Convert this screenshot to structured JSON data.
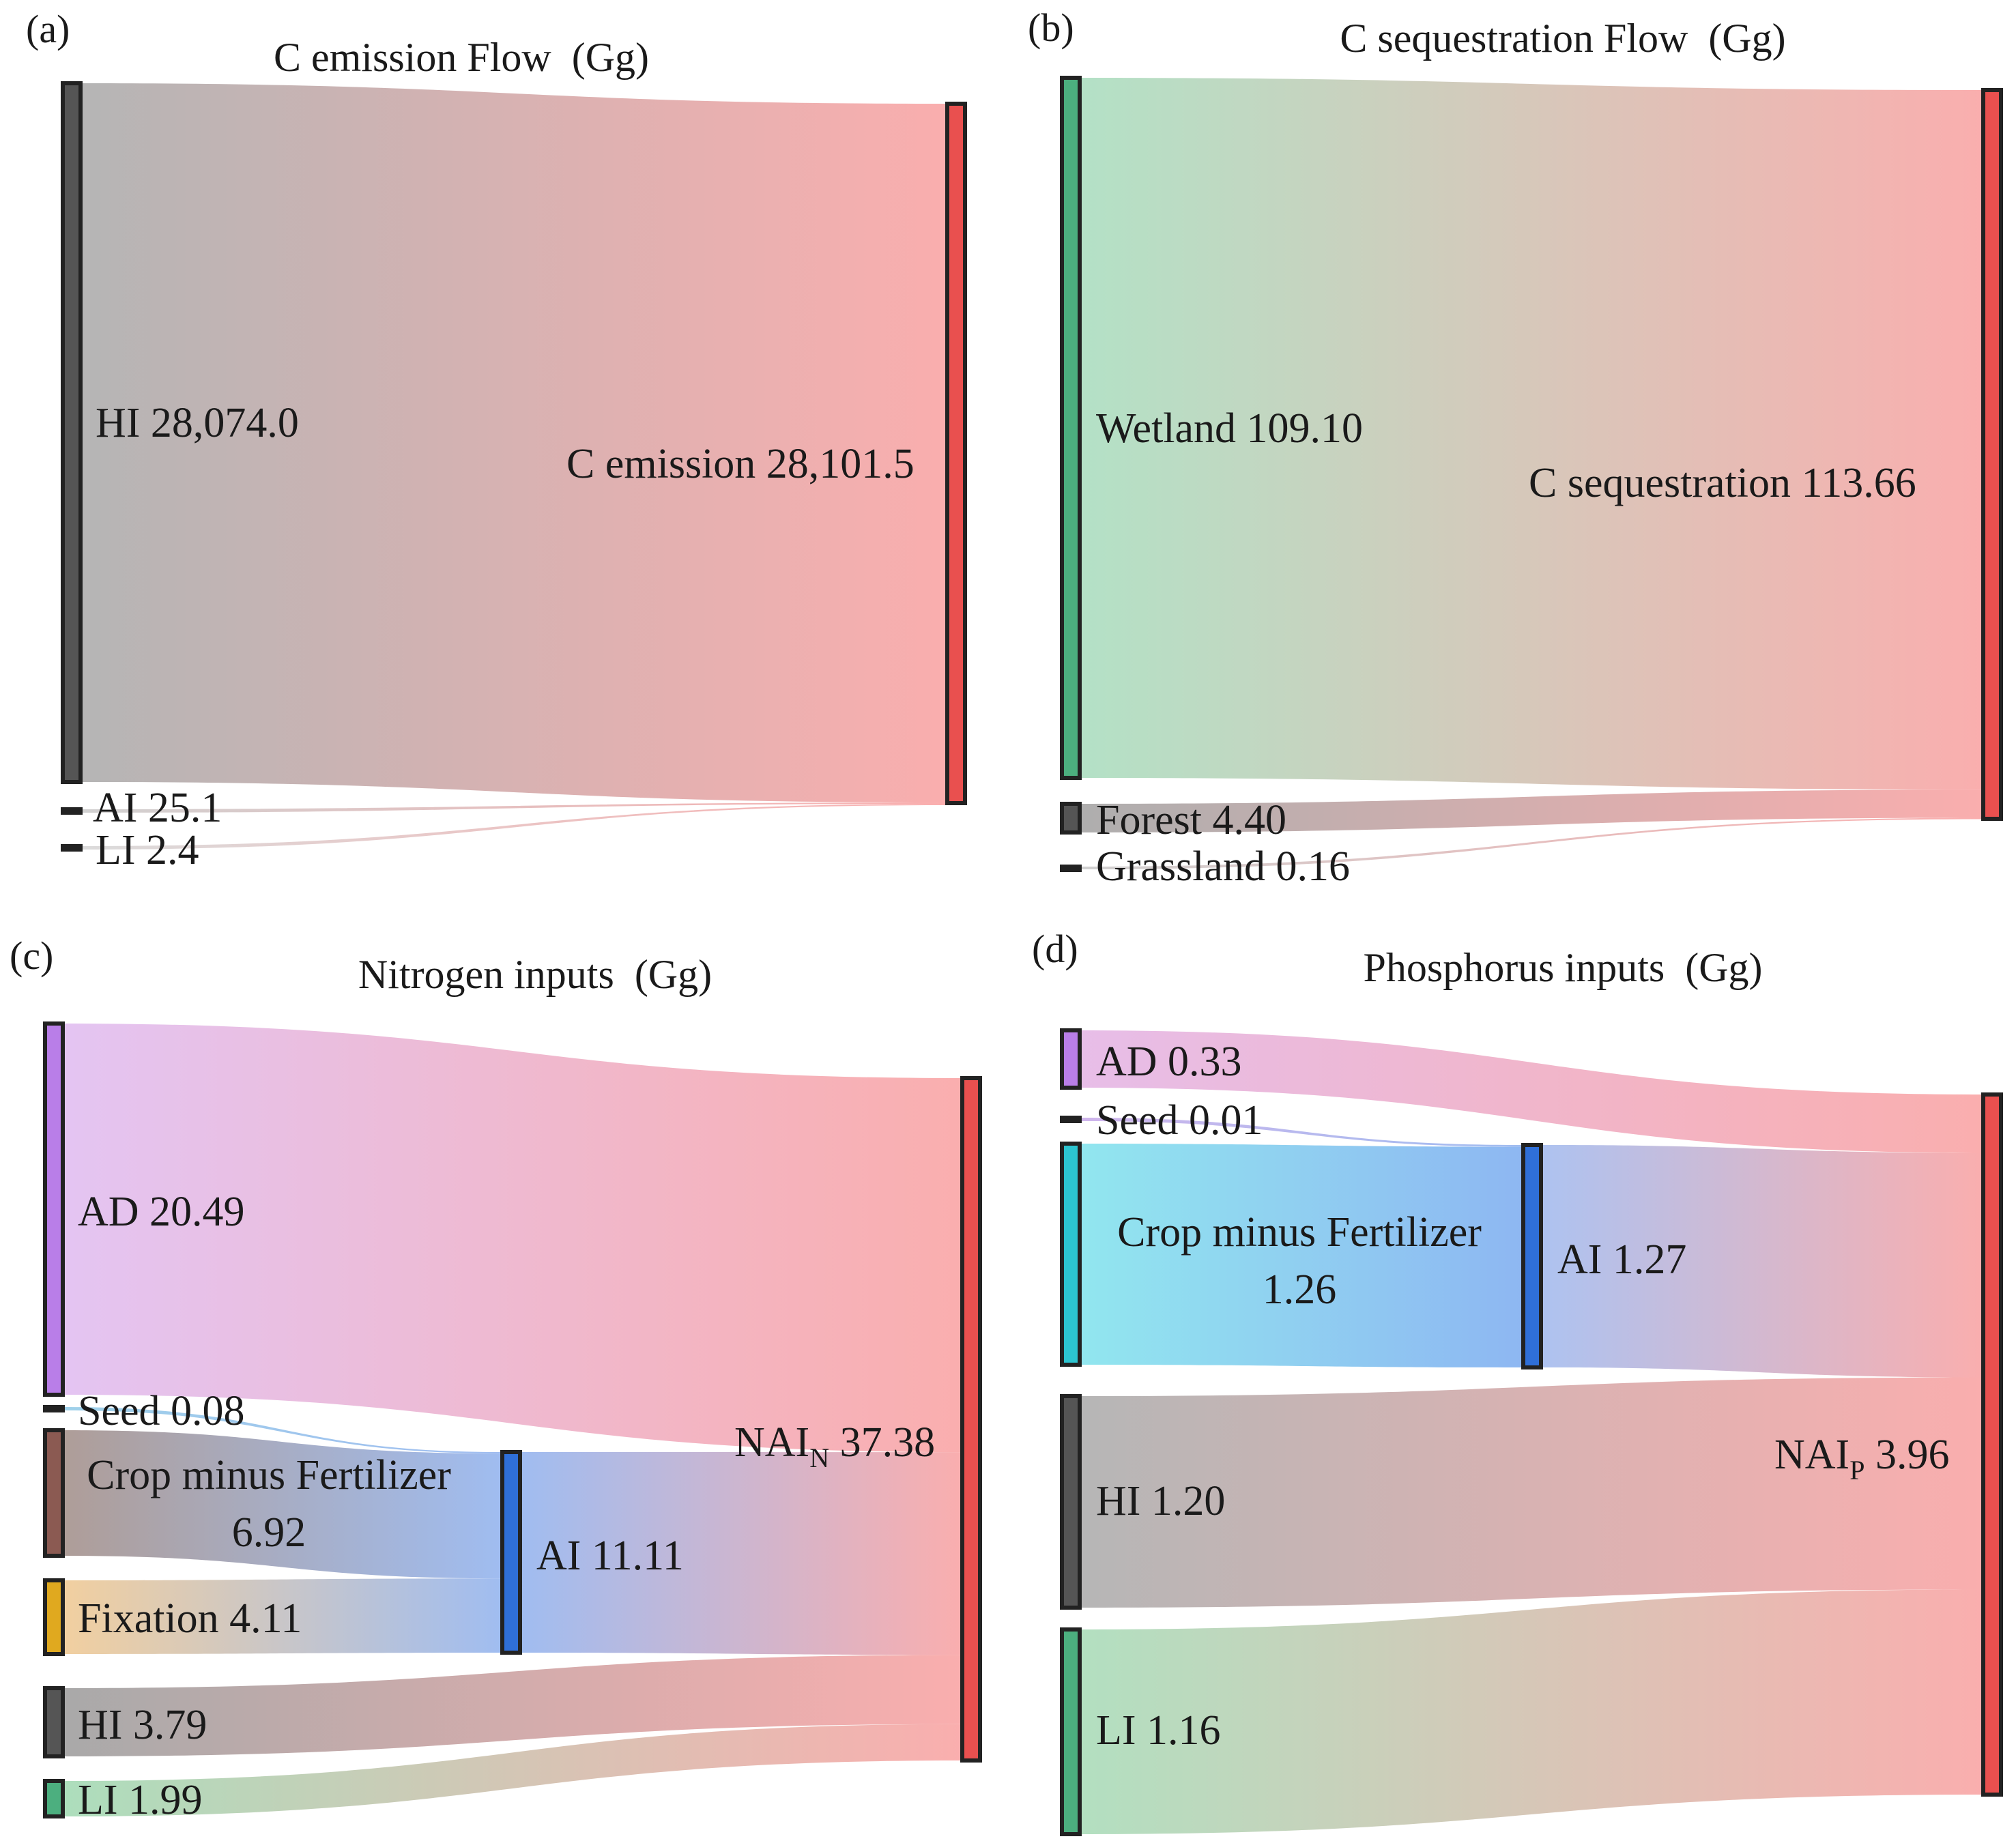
{
  "colors": {
    "gray": "#666666",
    "red": "#e9504f",
    "target_red": "#f9a3a3",
    "green": "#4caf7f",
    "purple": "#b97ee8",
    "brown": "#8b5a52",
    "gold": "#e0a91f",
    "blue": "#2f6fd8",
    "cyan": "#2cc4d0"
  },
  "chart_data": [
    {
      "type": "sankey",
      "panel": "(a)",
      "title": "C emission Flow  (Gg)",
      "nodes": [
        {
          "id": "HI",
          "label": "HI 28,074.0",
          "value": 28074.0,
          "color": "#555555"
        },
        {
          "id": "AI",
          "label": "AI 25.1",
          "value": 25.1,
          "color": "#555555"
        },
        {
          "id": "LI",
          "label": "LI 2.4",
          "value": 2.4,
          "color": "#555555"
        },
        {
          "id": "C",
          "label": "C emission 28,101.5",
          "value": 28101.5,
          "color": "#e9504f"
        }
      ],
      "links": [
        {
          "source": "HI",
          "target": "C",
          "value": 28074.0
        },
        {
          "source": "AI",
          "target": "C",
          "value": 25.1
        },
        {
          "source": "LI",
          "target": "C",
          "value": 2.4
        }
      ]
    },
    {
      "type": "sankey",
      "panel": "(b)",
      "title": "C sequestration Flow  (Gg)",
      "nodes": [
        {
          "id": "Wetland",
          "label": "Wetland 109.10",
          "value": 109.1,
          "color": "#4caf7f"
        },
        {
          "id": "Forest",
          "label": "Forest 4.40",
          "value": 4.4,
          "color": "#555555"
        },
        {
          "id": "Grassland",
          "label": "Grassland 0.16",
          "value": 0.16,
          "color": "#555555"
        },
        {
          "id": "CS",
          "label": "C sequestration 113.66",
          "value": 113.66,
          "color": "#e9504f"
        }
      ],
      "links": [
        {
          "source": "Wetland",
          "target": "CS",
          "value": 109.1
        },
        {
          "source": "Forest",
          "target": "CS",
          "value": 4.4
        },
        {
          "source": "Grassland",
          "target": "CS",
          "value": 0.16
        }
      ]
    },
    {
      "type": "sankey",
      "panel": "(c)",
      "title": "Nitrogen inputs  (Gg)",
      "nodes": [
        {
          "id": "AD",
          "label": "AD 20.49",
          "value": 20.49,
          "color": "#b97ee8"
        },
        {
          "id": "Seed",
          "label": "Seed 0.08",
          "value": 0.08,
          "color": "#555555"
        },
        {
          "id": "Crop",
          "label": "Crop minus Fertilizer",
          "label2": "6.92",
          "value": 6.92,
          "color": "#8b5a52"
        },
        {
          "id": "Fix",
          "label": "Fixation 4.11",
          "value": 4.11,
          "color": "#e0a91f"
        },
        {
          "id": "HI",
          "label": "HI 3.79",
          "value": 3.79,
          "color": "#555555"
        },
        {
          "id": "LI",
          "label": "LI 1.99",
          "value": 1.99,
          "color": "#4caf7f"
        },
        {
          "id": "AI",
          "label": "AI 11.11",
          "value": 11.11,
          "color": "#2f6fd8"
        },
        {
          "id": "NAI",
          "label": "NAI",
          "sub": "N",
          "label_value": "37.38",
          "value": 37.38,
          "color": "#e9504f"
        }
      ],
      "links": [
        {
          "source": "AD",
          "target": "NAI",
          "value": 20.49
        },
        {
          "source": "Seed",
          "target": "AI",
          "value": 0.08
        },
        {
          "source": "Crop",
          "target": "AI",
          "value": 6.92
        },
        {
          "source": "Fix",
          "target": "AI",
          "value": 4.11
        },
        {
          "source": "AI",
          "target": "NAI",
          "value": 11.11
        },
        {
          "source": "HI",
          "target": "NAI",
          "value": 3.79
        },
        {
          "source": "LI",
          "target": "NAI",
          "value": 1.99
        }
      ]
    },
    {
      "type": "sankey",
      "panel": "(d)",
      "title": "Phosphorus inputs  (Gg)",
      "nodes": [
        {
          "id": "AD",
          "label": "AD 0.33",
          "value": 0.33,
          "color": "#b97ee8"
        },
        {
          "id": "Seed",
          "label": "Seed 0.01",
          "value": 0.01,
          "color": "#555555"
        },
        {
          "id": "Crop",
          "label": "Crop minus Fertilizer",
          "label2": "1.26",
          "value": 1.26,
          "color": "#2cc4d0"
        },
        {
          "id": "HI",
          "label": "HI 1.20",
          "value": 1.2,
          "color": "#555555"
        },
        {
          "id": "LI",
          "label": "LI 1.16",
          "value": 1.16,
          "color": "#4caf7f"
        },
        {
          "id": "AI",
          "label": "AI 1.27",
          "value": 1.27,
          "color": "#2f6fd8"
        },
        {
          "id": "NAI",
          "label": "NAI",
          "sub": "P",
          "label_value": "3.96",
          "value": 3.96,
          "color": "#e9504f"
        }
      ],
      "links": [
        {
          "source": "AD",
          "target": "NAI",
          "value": 0.33
        },
        {
          "source": "Seed",
          "target": "AI",
          "value": 0.01
        },
        {
          "source": "Crop",
          "target": "AI",
          "value": 1.26
        },
        {
          "source": "AI",
          "target": "NAI",
          "value": 1.27
        },
        {
          "source": "HI",
          "target": "NAI",
          "value": 1.2
        },
        {
          "source": "LI",
          "target": "NAI",
          "value": 1.16
        }
      ]
    }
  ]
}
